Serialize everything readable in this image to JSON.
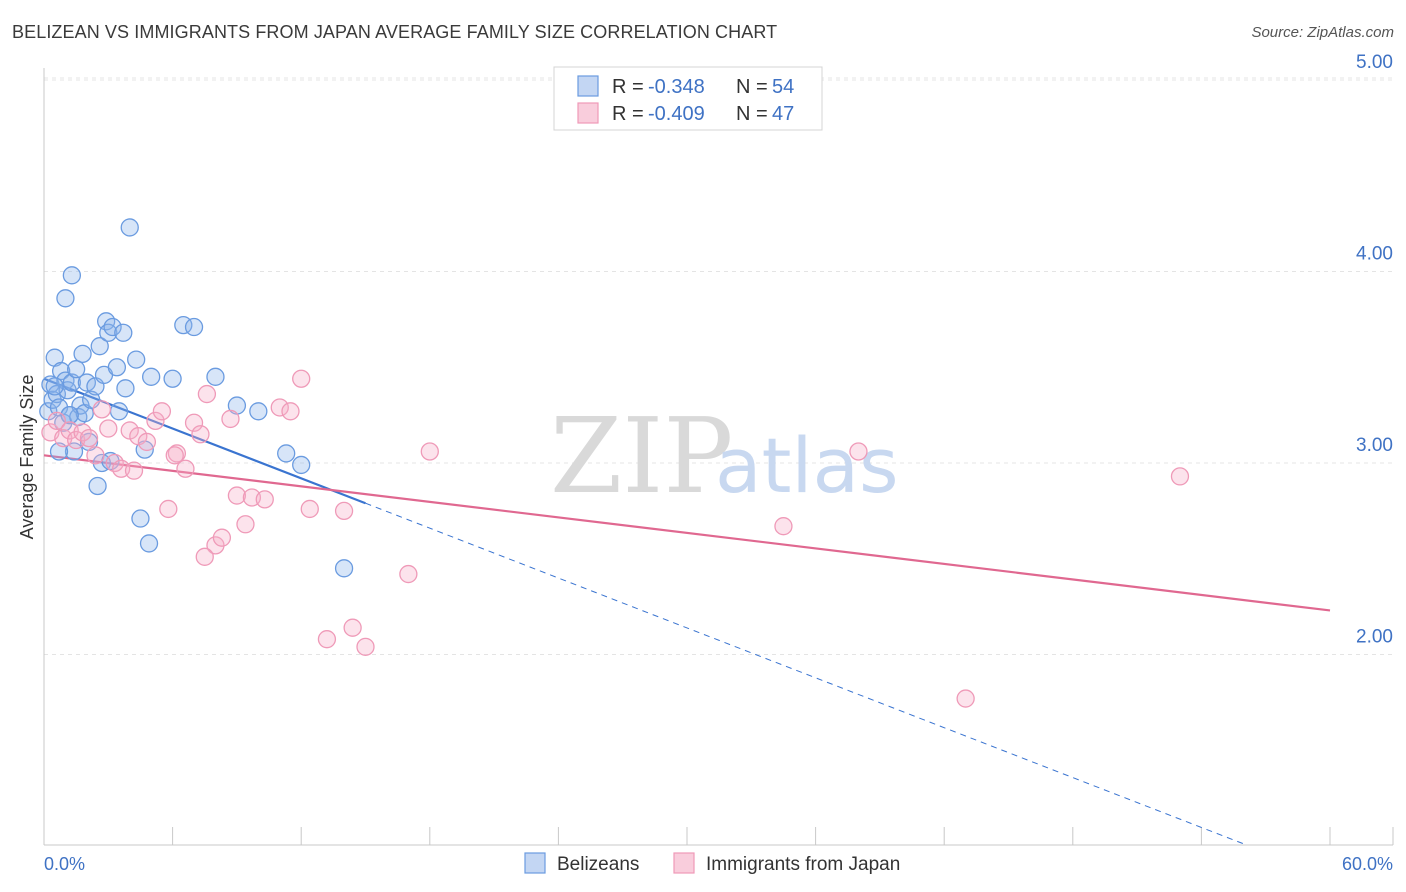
{
  "title": "BELIZEAN VS IMMIGRANTS FROM JAPAN AVERAGE FAMILY SIZE CORRELATION CHART",
  "source": "Source: ZipAtlas.com",
  "watermark": {
    "zip": "ZIP",
    "atlas": "atlas"
  },
  "colors": {
    "blue": "#6a9be0",
    "blue_line": "#3a74d0",
    "pink": "#ef9ab8",
    "pink_line": "#e06890",
    "tick_text": "#3f72c4",
    "grid": "#e4e4e4"
  },
  "legend_box": {
    "rows": [
      {
        "r_label": "R = ",
        "r_value": "-0.348",
        "n_label": "N = ",
        "n_value": "54",
        "series": "blue"
      },
      {
        "r_label": "R = ",
        "r_value": "-0.409",
        "n_label": "N = ",
        "n_value": "47",
        "series": "pink"
      }
    ]
  },
  "chart_data": {
    "type": "scatter",
    "title": "BELIZEAN VS IMMIGRANTS FROM JAPAN AVERAGE FAMILY SIZE CORRELATION CHART",
    "xlabel": "",
    "ylabel": "Average Family Size",
    "xlim": [
      0,
      60
    ],
    "ylim": [
      1.0,
      5.1
    ],
    "x_tick_labels": [
      "0.0%",
      "60.0%"
    ],
    "y_ticks": [
      2.0,
      3.0,
      4.0,
      5.0
    ],
    "y_tick_labels": [
      "2.00",
      "3.00",
      "4.00",
      "5.00"
    ],
    "grid": true,
    "legend_placement": "bottom-center",
    "series": [
      {
        "name": "Belizeans",
        "color": "blue",
        "trend": {
          "x0": 0,
          "y0": 3.44,
          "x1": 15,
          "y1": 2.79,
          "dashed_to_x": 56,
          "dashed_to_y": 1.01
        },
        "points": [
          [
            0.2,
            3.27
          ],
          [
            0.3,
            3.41
          ],
          [
            0.4,
            3.33
          ],
          [
            0.5,
            3.55
          ],
          [
            0.6,
            3.36
          ],
          [
            0.7,
            3.29
          ],
          [
            0.8,
            3.48
          ],
          [
            0.9,
            3.21
          ],
          [
            1.0,
            3.43
          ],
          [
            1.1,
            3.38
          ],
          [
            1.2,
            3.25
          ],
          [
            1.3,
            3.42
          ],
          [
            1.4,
            3.06
          ],
          [
            1.5,
            3.49
          ],
          [
            1.6,
            3.24
          ],
          [
            1.7,
            3.3
          ],
          [
            1.8,
            3.57
          ],
          [
            1.9,
            3.26
          ],
          [
            2.0,
            3.42
          ],
          [
            2.1,
            3.11
          ],
          [
            2.2,
            3.33
          ],
          [
            2.4,
            3.4
          ],
          [
            2.5,
            2.88
          ],
          [
            2.6,
            3.61
          ],
          [
            2.7,
            3.0
          ],
          [
            2.8,
            3.46
          ],
          [
            2.9,
            3.74
          ],
          [
            3.0,
            3.68
          ],
          [
            3.1,
            3.01
          ],
          [
            3.2,
            3.71
          ],
          [
            3.4,
            3.5
          ],
          [
            3.5,
            3.27
          ],
          [
            3.7,
            3.68
          ],
          [
            3.8,
            3.39
          ],
          [
            4.0,
            4.23
          ],
          [
            4.3,
            3.54
          ],
          [
            4.5,
            2.71
          ],
          [
            4.7,
            3.07
          ],
          [
            4.9,
            2.58
          ],
          [
            1.0,
            3.86
          ],
          [
            1.3,
            3.98
          ],
          [
            5.0,
            3.45
          ],
          [
            6.0,
            3.44
          ],
          [
            6.5,
            3.72
          ],
          [
            7.0,
            3.71
          ],
          [
            8.0,
            3.45
          ],
          [
            9.0,
            3.3
          ],
          [
            10.0,
            3.27
          ],
          [
            11.3,
            3.05
          ],
          [
            12.0,
            2.99
          ],
          [
            14.0,
            2.45
          ],
          [
            0.5,
            3.4
          ],
          [
            0.7,
            3.06
          ],
          [
            1.2,
            3.25
          ]
        ]
      },
      {
        "name": "Immigrants from Japan",
        "color": "pink",
        "trend": {
          "x0": 0,
          "y0": 3.04,
          "x1": 60,
          "y1": 2.23
        },
        "points": [
          [
            0.3,
            3.16
          ],
          [
            0.6,
            3.22
          ],
          [
            0.9,
            3.13
          ],
          [
            1.2,
            3.17
          ],
          [
            1.5,
            3.12
          ],
          [
            1.8,
            3.16
          ],
          [
            2.1,
            3.13
          ],
          [
            2.4,
            3.04
          ],
          [
            2.7,
            3.28
          ],
          [
            3.0,
            3.18
          ],
          [
            3.3,
            3.0
          ],
          [
            3.6,
            2.97
          ],
          [
            4.0,
            3.17
          ],
          [
            4.4,
            3.14
          ],
          [
            4.8,
            3.11
          ],
          [
            5.2,
            3.22
          ],
          [
            5.5,
            3.27
          ],
          [
            5.8,
            2.76
          ],
          [
            6.2,
            3.05
          ],
          [
            6.6,
            2.97
          ],
          [
            7.0,
            3.21
          ],
          [
            7.3,
            3.15
          ],
          [
            7.6,
            3.36
          ],
          [
            8.0,
            2.57
          ],
          [
            8.3,
            2.61
          ],
          [
            8.7,
            3.23
          ],
          [
            9.0,
            2.83
          ],
          [
            9.4,
            2.68
          ],
          [
            9.7,
            2.82
          ],
          [
            10.3,
            2.81
          ],
          [
            11.0,
            3.29
          ],
          [
            11.5,
            3.27
          ],
          [
            12.0,
            3.44
          ],
          [
            12.4,
            2.76
          ],
          [
            13.2,
            2.08
          ],
          [
            14.0,
            2.75
          ],
          [
            14.4,
            2.14
          ],
          [
            15.0,
            2.04
          ],
          [
            17.0,
            2.42
          ],
          [
            18.0,
            3.06
          ],
          [
            6.1,
            3.04
          ],
          [
            34.5,
            2.67
          ],
          [
            38.0,
            3.06
          ],
          [
            43.0,
            1.77
          ],
          [
            53.0,
            2.93
          ],
          [
            4.2,
            2.96
          ],
          [
            7.5,
            2.51
          ]
        ]
      }
    ]
  }
}
